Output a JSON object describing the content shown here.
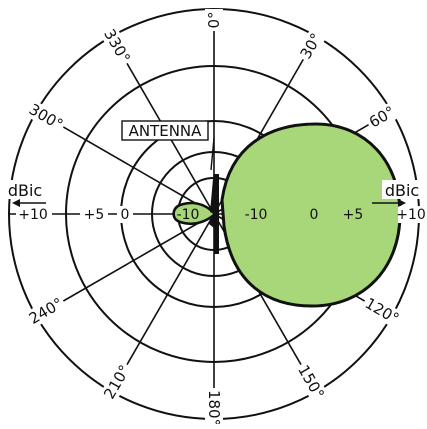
{
  "diagram": {
    "angle_labels": [
      {
        "deg": 0,
        "text": "0°"
      },
      {
        "deg": 30,
        "text": "30°"
      },
      {
        "deg": 60,
        "text": "60°"
      },
      {
        "deg": 120,
        "text": "120°"
      },
      {
        "deg": 150,
        "text": "150°"
      },
      {
        "deg": 180,
        "text": "180°"
      },
      {
        "deg": 210,
        "text": "210°"
      },
      {
        "deg": 240,
        "text": "240°"
      },
      {
        "deg": 300,
        "text": "300°"
      },
      {
        "deg": 330,
        "text": "330°"
      }
    ],
    "axis_labels": {
      "left_outer": "+10",
      "left_plus5": "+5",
      "left_zero": "0",
      "left_minus10": "-10",
      "right_minus10": "-10",
      "right_zero": "0",
      "right_plus5": "+5",
      "right_outer": "+10"
    },
    "unit_left": "dBic",
    "unit_right": "dBic",
    "antenna_label": "ANTENNA",
    "colors": {
      "pattern_fill": "#a8d77a",
      "stroke": "#111111",
      "background": "#ffffff"
    }
  }
}
